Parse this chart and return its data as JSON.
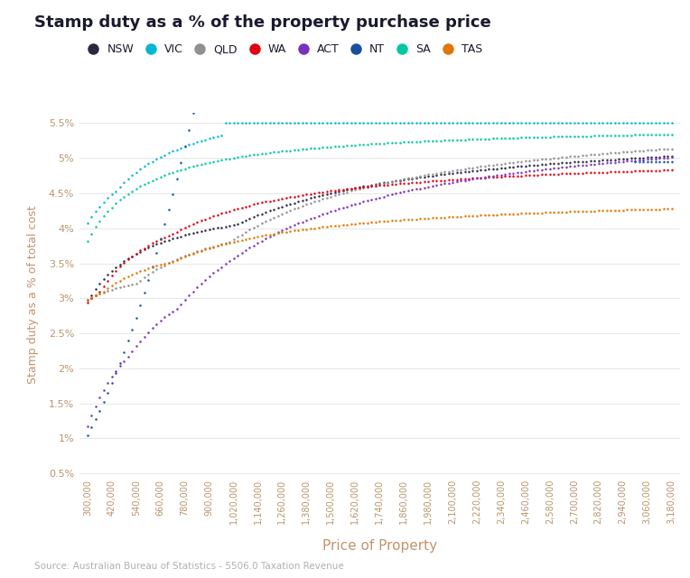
{
  "title": "Stamp duty as a % of the property purchase price",
  "xlabel": "Price of Property",
  "ylabel": "Stamp duty as a % of total cost",
  "source": "Source: Australian Bureau of Statistics - 5506.0 Taxation Revenue",
  "background_color": "#ffffff",
  "title_color": "#1a1a2e",
  "axis_label_color": "#c0956b",
  "tick_color": "#b8956a",
  "grid_color": "#e8e8e8",
  "legend_entries": [
    "NSW",
    "VIC",
    "QLD",
    "WA",
    "ACT",
    "NT",
    "SA",
    "TAS"
  ],
  "line_colors": {
    "NSW": "#2a2a3e",
    "VIC": "#00b8d4",
    "QLD": "#909090",
    "WA": "#e00010",
    "ACT": "#7b2fbe",
    "NT": "#1a4fa0",
    "SA": "#00c8a0",
    "TAS": "#e07800"
  },
  "price_min": 300000,
  "price_max": 3180000,
  "price_step": 20000,
  "ylim_pct": [
    0.45,
    5.65
  ],
  "yticks_pct": [
    0.5,
    1.0,
    1.5,
    2.0,
    2.5,
    3.0,
    3.5,
    4.0,
    4.5,
    5.0,
    5.5
  ]
}
